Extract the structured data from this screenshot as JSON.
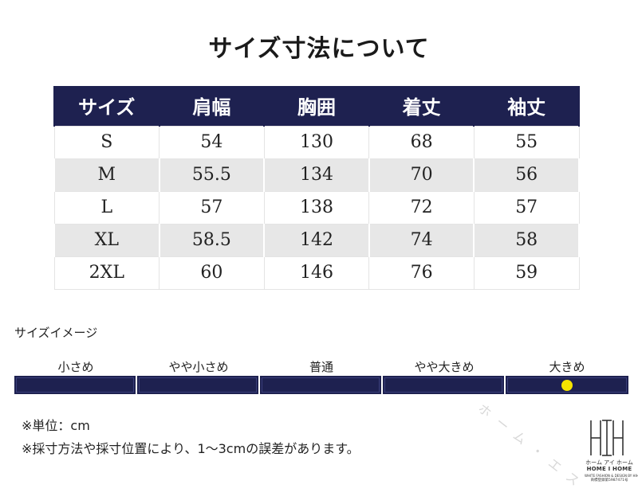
{
  "title": "サイズ寸法について",
  "table": {
    "headers": [
      "サイズ",
      "肩幅",
      "胸囲",
      "着丈",
      "袖丈"
    ],
    "rows": [
      [
        "S",
        "54",
        "130",
        "68",
        "55"
      ],
      [
        "M",
        "55.5",
        "134",
        "70",
        "56"
      ],
      [
        "L",
        "57",
        "138",
        "72",
        "57"
      ],
      [
        "XL",
        "58.5",
        "142",
        "74",
        "58"
      ],
      [
        "2XL",
        "60",
        "146",
        "76",
        "59"
      ]
    ]
  },
  "size_image": {
    "label": "サイズイメージ",
    "scale": [
      "小さめ",
      "やや小さめ",
      "普通",
      "やや大きめ",
      "大きめ"
    ],
    "selected_index": 4,
    "marker_color": "#f5e400",
    "bar_color": "#1e2150"
  },
  "notes": {
    "unit": "※単位：cm",
    "disclaimer": "※採寸方法や採寸位置により、1～3cmの誤差があります。"
  },
  "logo": {
    "kana": "ホーム アイ ホーム",
    "name": "HOME I HOME",
    "small": "WHITE FASHION & DESIGN BY HIH",
    "registration": "商標登録第5987471号"
  },
  "watermark": "ホーム・エス",
  "colors": {
    "header_bg": "#1e2150",
    "row_alt_bg": "#e7e7e7"
  }
}
